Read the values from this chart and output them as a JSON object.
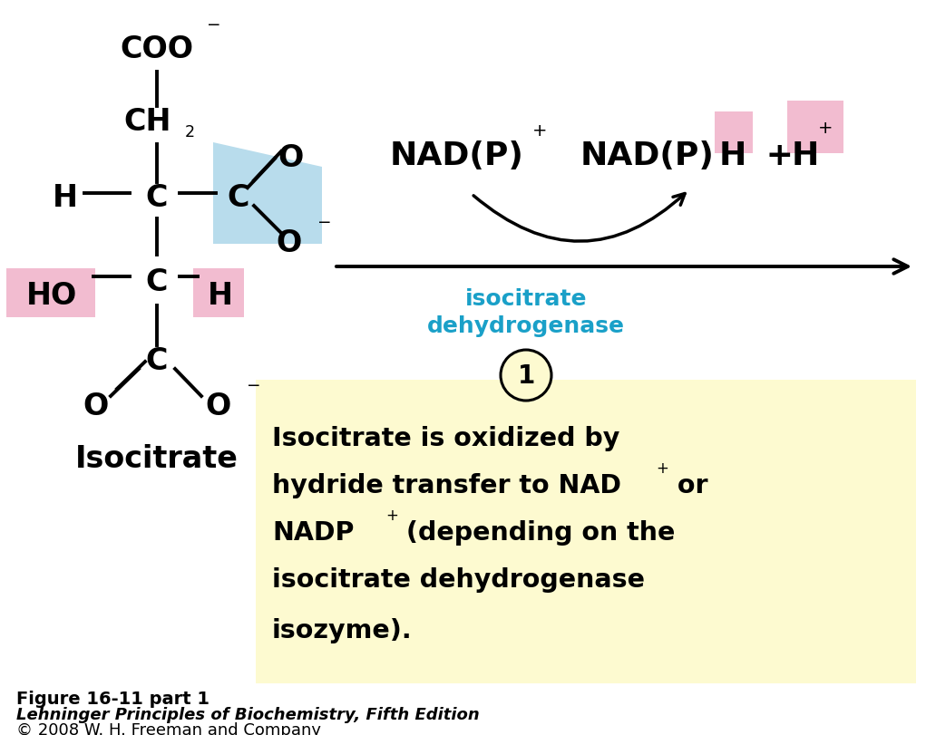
{
  "bg_color": "#ffffff",
  "pink_highlight": "#f2bcd0",
  "blue_highlight": "#b8dcec",
  "yellow_box_color": "#fdfad0",
  "cyan_text": "#1aa0c8",
  "black": "#000000",
  "fig_caption_line1": "Figure 16-11 part 1",
  "fig_caption_line2": "Lehninger Principles of Biochemistry, Fifth Edition",
  "fig_caption_line3": "© 2008 W. H. Freeman and Company",
  "enzyme_text_line1": "isocitrate",
  "enzyme_text_line2": "dehydrogenase"
}
